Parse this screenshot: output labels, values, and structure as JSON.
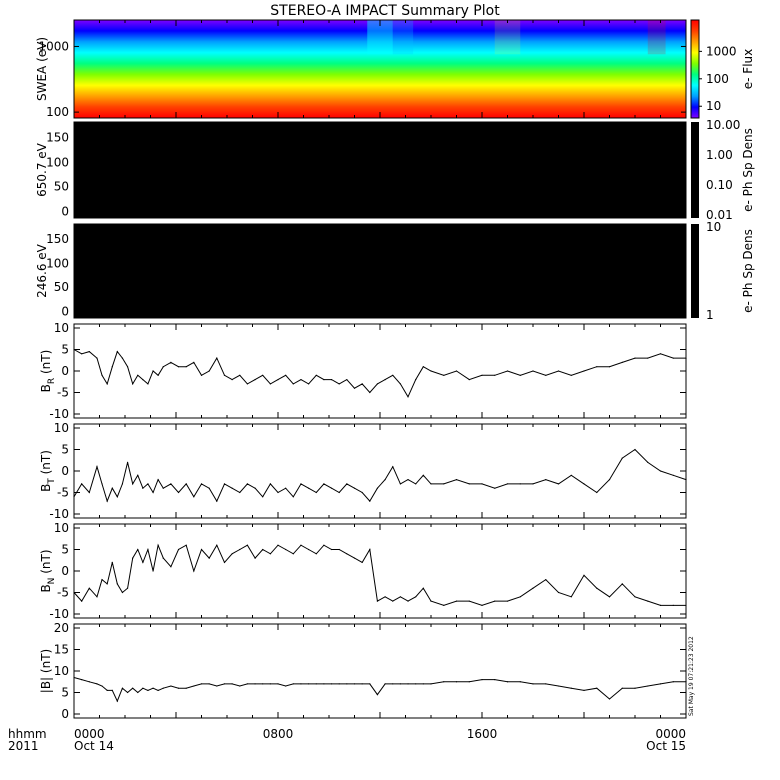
{
  "title": "STEREO-A IMPACT Summary Plot",
  "time_axis": {
    "left_label_top": "hhmm",
    "left_label_bottom": "2011",
    "ticks": [
      {
        "hhmm": "0000",
        "date": "Oct 14",
        "hour": 0
      },
      {
        "hhmm": "0800",
        "date": "",
        "hour": 8
      },
      {
        "hhmm": "1600",
        "date": "",
        "hour": 16
      },
      {
        "hhmm": "0000",
        "date": "Oct 15",
        "hour": 24
      }
    ]
  },
  "timestamp": "Sat May 19 07:21:23 2012",
  "colors": {
    "line": "#000000",
    "panel_fill": "#000000"
  },
  "chart_data": [
    {
      "type": "heatmap",
      "name": "swea",
      "ylabel": "SWEA (eV)",
      "scale": "log",
      "yticks": [
        "1000",
        "100"
      ],
      "colorbar_label": "e- Flux",
      "colorbar_ticks": [
        "1000",
        "100",
        "10"
      ],
      "colorscale": [
        "#7f00ff",
        "#0000ff",
        "#00a0ff",
        "#00ffff",
        "#00ff80",
        "#80ff00",
        "#ffff00",
        "#ffa000",
        "#ff4000",
        "#ff0000"
      ]
    },
    {
      "type": "heatmap",
      "name": "pad650",
      "ylabel": "650.7 eV",
      "yticks": [
        "150",
        "100",
        "50",
        "0"
      ],
      "colorbar_label": "e- Ph Sp Dens",
      "colorbar_ticks": [
        "10.00",
        "1.00",
        "0.10",
        "0.01"
      ]
    },
    {
      "type": "heatmap",
      "name": "pad246",
      "ylabel": "246.6 eV",
      "yticks": [
        "150",
        "100",
        "50",
        "0"
      ],
      "colorbar_label": "e- Ph Sp Dens",
      "colorbar_ticks": [
        "10",
        "1"
      ]
    },
    {
      "type": "line",
      "name": "br",
      "ylabel_main": "B",
      "ylabel_sub": "R",
      "ylabel_unit": " (nT)",
      "ylim": [
        -10,
        10
      ],
      "yticks": [
        "10",
        "5",
        "0",
        "-5",
        "-10"
      ],
      "x": [
        0,
        0.3,
        0.6,
        0.9,
        1.1,
        1.3,
        1.5,
        1.7,
        1.9,
        2.1,
        2.3,
        2.5,
        2.7,
        2.9,
        3.1,
        3.3,
        3.5,
        3.8,
        4.1,
        4.4,
        4.7,
        5.0,
        5.3,
        5.6,
        5.9,
        6.2,
        6.5,
        6.8,
        7.1,
        7.4,
        7.7,
        8.0,
        8.3,
        8.6,
        8.9,
        9.2,
        9.5,
        9.8,
        10.1,
        10.4,
        10.7,
        11.0,
        11.3,
        11.6,
        11.9,
        12.2,
        12.5,
        12.8,
        13.1,
        13.4,
        13.7,
        14.0,
        14.5,
        15.0,
        15.5,
        16.0,
        16.5,
        17.0,
        17.5,
        18.0,
        18.5,
        19.0,
        19.5,
        20.0,
        20.5,
        21.0,
        21.5,
        22.0,
        22.5,
        23.0,
        23.5,
        24.0
      ],
      "values": [
        5,
        4,
        4.5,
        3,
        -1,
        -3,
        1,
        4.5,
        3,
        1,
        -3,
        -1,
        -2,
        -3,
        0,
        -1,
        1,
        2,
        1,
        1,
        2,
        -1,
        0,
        3,
        -1,
        -2,
        -1,
        -3,
        -2,
        -1,
        -3,
        -2,
        -1,
        -3,
        -2,
        -3,
        -1,
        -2,
        -2,
        -3,
        -2,
        -4,
        -3,
        -5,
        -3,
        -2,
        -1,
        -3,
        -6,
        -2,
        1,
        0,
        -1,
        0,
        -2,
        -1,
        -1,
        0,
        -1,
        0,
        -1,
        0,
        -1,
        0,
        1,
        1,
        2,
        3,
        3,
        4,
        3,
        3
      ]
    },
    {
      "type": "line",
      "name": "bt",
      "ylabel_main": "B",
      "ylabel_sub": "T",
      "ylabel_unit": " (nT)",
      "ylim": [
        -10,
        10
      ],
      "yticks": [
        "10",
        "5",
        "0",
        "-5",
        "-10"
      ],
      "x": [
        0,
        0.3,
        0.6,
        0.9,
        1.1,
        1.3,
        1.5,
        1.7,
        1.9,
        2.1,
        2.3,
        2.5,
        2.7,
        2.9,
        3.1,
        3.3,
        3.5,
        3.8,
        4.1,
        4.4,
        4.7,
        5.0,
        5.3,
        5.6,
        5.9,
        6.2,
        6.5,
        6.8,
        7.1,
        7.4,
        7.7,
        8.0,
        8.3,
        8.6,
        8.9,
        9.2,
        9.5,
        9.8,
        10.1,
        10.4,
        10.7,
        11.0,
        11.3,
        11.6,
        11.9,
        12.2,
        12.5,
        12.8,
        13.1,
        13.4,
        13.7,
        14.0,
        14.5,
        15.0,
        15.5,
        16.0,
        16.5,
        17.0,
        17.5,
        18.0,
        18.5,
        19.0,
        19.5,
        20.0,
        20.5,
        21.0,
        21.5,
        22.0,
        22.5,
        23.0,
        23.5,
        24.0
      ],
      "values": [
        -6,
        -3,
        -5,
        1,
        -3,
        -7,
        -4,
        -6,
        -3,
        2,
        -3,
        -1,
        -4,
        -3,
        -5,
        -2,
        -4,
        -3,
        -5,
        -3,
        -6,
        -3,
        -4,
        -7,
        -3,
        -4,
        -5,
        -3,
        -4,
        -6,
        -3,
        -5,
        -4,
        -6,
        -3,
        -4,
        -5,
        -3,
        -4,
        -5,
        -3,
        -4,
        -5,
        -7,
        -4,
        -2,
        1,
        -3,
        -2,
        -3,
        -1,
        -3,
        -3,
        -2,
        -3,
        -3,
        -4,
        -3,
        -3,
        -3,
        -2,
        -3,
        -1,
        -3,
        -5,
        -2,
        3,
        5,
        2,
        0,
        -1,
        -2
      ]
    },
    {
      "type": "line",
      "name": "bn",
      "ylabel_main": "B",
      "ylabel_sub": "N",
      "ylabel_unit": " (nT)",
      "ylim": [
        -10,
        10
      ],
      "yticks": [
        "10",
        "5",
        "0",
        "-5",
        "-10"
      ],
      "x": [
        0,
        0.3,
        0.6,
        0.9,
        1.1,
        1.3,
        1.5,
        1.7,
        1.9,
        2.1,
        2.3,
        2.5,
        2.7,
        2.9,
        3.1,
        3.3,
        3.5,
        3.8,
        4.1,
        4.4,
        4.7,
        5.0,
        5.3,
        5.6,
        5.9,
        6.2,
        6.5,
        6.8,
        7.1,
        7.4,
        7.7,
        8.0,
        8.3,
        8.6,
        8.9,
        9.2,
        9.5,
        9.8,
        10.1,
        10.4,
        10.7,
        11.0,
        11.3,
        11.6,
        11.9,
        12.2,
        12.5,
        12.8,
        13.1,
        13.4,
        13.7,
        14.0,
        14.5,
        15.0,
        15.5,
        16.0,
        16.5,
        17.0,
        17.5,
        18.0,
        18.5,
        19.0,
        19.5,
        20.0,
        20.5,
        21.0,
        21.5,
        22.0,
        22.5,
        23.0,
        23.5,
        24.0
      ],
      "values": [
        -5,
        -7,
        -4,
        -6,
        -2,
        -3,
        2,
        -3,
        -5,
        -4,
        3,
        5,
        2,
        5,
        0,
        6,
        3,
        1,
        5,
        6,
        0,
        5,
        3,
        6,
        2,
        4,
        5,
        6,
        3,
        5,
        4,
        6,
        5,
        4,
        6,
        5,
        4,
        6,
        5,
        5,
        4,
        3,
        2,
        5,
        -7,
        -6,
        -7,
        -6,
        -7,
        -6,
        -4,
        -7,
        -8,
        -7,
        -7,
        -8,
        -7,
        -7,
        -6,
        -4,
        -2,
        -5,
        -6,
        -1,
        -4,
        -6,
        -3,
        -6,
        -7,
        -8,
        -8,
        -8
      ]
    },
    {
      "type": "line",
      "name": "bmag",
      "ylabel": "|B| (nT)",
      "ylim": [
        0,
        20
      ],
      "yticks": [
        "20",
        "15",
        "10",
        "5",
        "0"
      ],
      "x": [
        0,
        0.3,
        0.6,
        0.9,
        1.1,
        1.3,
        1.5,
        1.7,
        1.9,
        2.1,
        2.3,
        2.5,
        2.7,
        2.9,
        3.1,
        3.3,
        3.5,
        3.8,
        4.1,
        4.4,
        4.7,
        5.0,
        5.3,
        5.6,
        5.9,
        6.2,
        6.5,
        6.8,
        7.1,
        7.4,
        7.7,
        8.0,
        8.3,
        8.6,
        8.9,
        9.2,
        9.5,
        9.8,
        10.1,
        10.4,
        10.7,
        11.0,
        11.3,
        11.6,
        11.9,
        12.2,
        12.5,
        12.8,
        13.1,
        13.4,
        13.7,
        14.0,
        14.5,
        15.0,
        15.5,
        16.0,
        16.5,
        17.0,
        17.5,
        18.0,
        18.5,
        19.0,
        19.5,
        20.0,
        20.5,
        21.0,
        21.5,
        22.0,
        22.5,
        23.0,
        23.5,
        24.0
      ],
      "values": [
        8.5,
        8,
        7.5,
        7,
        6.5,
        5.5,
        5.5,
        3,
        6,
        5,
        6,
        5,
        6,
        5.5,
        6,
        5.5,
        6,
        6.5,
        6,
        6,
        6.5,
        7,
        7,
        6.5,
        7,
        7,
        6.5,
        7,
        7,
        7,
        7,
        7,
        6.5,
        7,
        7,
        7,
        7,
        7,
        7,
        7,
        7,
        7,
        7,
        7,
        4.5,
        7,
        7,
        7,
        7,
        7,
        7,
        7,
        7.5,
        7.5,
        7.5,
        8,
        8,
        7.5,
        7.5,
        7,
        7,
        6.5,
        6,
        5.5,
        6,
        3.5,
        6,
        6,
        6.5,
        7,
        7.5,
        7.5
      ]
    }
  ]
}
